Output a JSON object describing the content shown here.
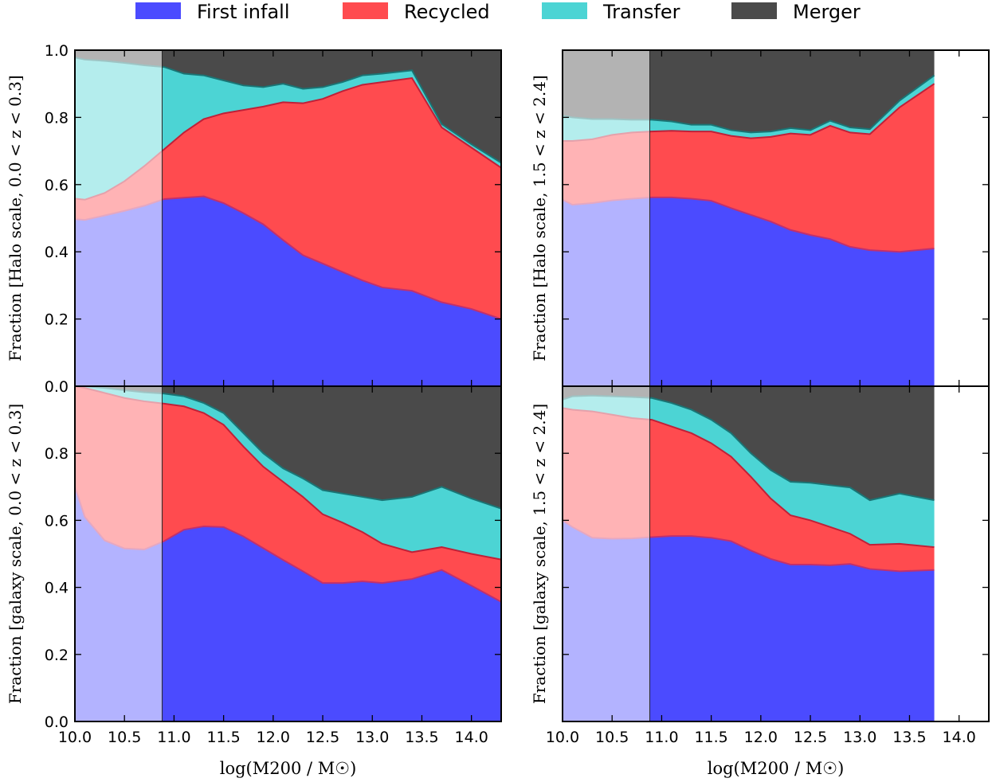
{
  "legend": {
    "placement": "top-center",
    "items": [
      {
        "label": "First infall",
        "color": "#4b4bff"
      },
      {
        "label": "Recycled",
        "color": "#ff4b4f"
      },
      {
        "label": "Transfer",
        "color": "#4cd4d4"
      },
      {
        "label": "Merger",
        "color": "#4a4a4a"
      }
    ]
  },
  "chart_data": [
    {
      "type": "area",
      "stacked": true,
      "title": "",
      "xlabel": "",
      "ylabel": "Fraction [Halo scale, 0.0 < z < 0.3]",
      "xlim": [
        10.0,
        14.3
      ],
      "ylim": [
        0.0,
        1.0
      ],
      "xticks": [
        "10.0",
        "10.5",
        "11.0",
        "11.5",
        "12.0",
        "12.5",
        "13.0",
        "13.5",
        "14.0"
      ],
      "yticks": [
        "0.0",
        "0.2",
        "0.4",
        "0.6",
        "0.8",
        "1.0"
      ],
      "shaded_region": [
        10.0,
        10.88
      ],
      "x": [
        10.0,
        10.1,
        10.3,
        10.5,
        10.7,
        10.9,
        11.1,
        11.3,
        11.5,
        11.7,
        11.9,
        12.1,
        12.3,
        12.5,
        12.7,
        12.9,
        13.1,
        13.4,
        13.7,
        14.0,
        14.3
      ],
      "cumulative": [
        {
          "series": "First infall",
          "values": [
            0.497,
            0.495,
            0.508,
            0.522,
            0.537,
            0.557,
            0.561,
            0.565,
            0.545,
            0.515,
            0.482,
            0.435,
            0.39,
            0.365,
            0.34,
            0.315,
            0.294,
            0.284,
            0.25,
            0.23,
            0.2
          ]
        },
        {
          "series": "Recycled",
          "values": [
            0.558,
            0.555,
            0.575,
            0.61,
            0.655,
            0.705,
            0.755,
            0.795,
            0.812,
            0.822,
            0.832,
            0.845,
            0.842,
            0.855,
            0.878,
            0.897,
            0.905,
            0.917,
            0.77,
            0.71,
            0.65
          ]
        },
        {
          "series": "Transfer",
          "values": [
            0.978,
            0.972,
            0.968,
            0.962,
            0.955,
            0.95,
            0.93,
            0.925,
            0.91,
            0.895,
            0.89,
            0.9,
            0.885,
            0.89,
            0.905,
            0.925,
            0.93,
            0.94,
            0.78,
            0.72,
            0.665
          ]
        },
        {
          "series": "Merger",
          "values": [
            1,
            1,
            1,
            1,
            1,
            1,
            1,
            1,
            1,
            1,
            1,
            1,
            1,
            1,
            1,
            1,
            1,
            1,
            1,
            1,
            1
          ]
        }
      ]
    },
    {
      "type": "area",
      "stacked": true,
      "title": "",
      "xlabel": "",
      "ylabel": "Fraction [Halo scale, 1.5 < z < 2.4]",
      "xlim": [
        10.0,
        14.3
      ],
      "ylim": [
        0.0,
        1.0
      ],
      "xticks": [
        "10.0",
        "10.5",
        "11.0",
        "11.5",
        "12.0",
        "12.5",
        "13.0",
        "13.5",
        "14.0"
      ],
      "yticks": [
        "0.0",
        "0.2",
        "0.4",
        "0.6",
        "0.8",
        "1.0"
      ],
      "shaded_region": [
        10.0,
        10.88
      ],
      "x": [
        10.0,
        10.1,
        10.3,
        10.5,
        10.7,
        10.9,
        11.1,
        11.3,
        11.5,
        11.7,
        11.9,
        12.1,
        12.3,
        12.5,
        12.7,
        12.9,
        13.1,
        13.4,
        13.75
      ],
      "cumulative": [
        {
          "series": "First infall",
          "values": [
            0.555,
            0.54,
            0.545,
            0.553,
            0.558,
            0.562,
            0.562,
            0.558,
            0.552,
            0.53,
            0.51,
            0.49,
            0.465,
            0.45,
            0.438,
            0.415,
            0.405,
            0.4,
            0.41
          ]
        },
        {
          "series": "Recycled",
          "values": [
            0.73,
            0.73,
            0.735,
            0.748,
            0.755,
            0.758,
            0.76,
            0.758,
            0.758,
            0.745,
            0.738,
            0.742,
            0.752,
            0.748,
            0.775,
            0.755,
            0.75,
            0.83,
            0.9
          ]
        },
        {
          "series": "Transfer",
          "values": [
            0.805,
            0.8,
            0.795,
            0.795,
            0.793,
            0.793,
            0.788,
            0.778,
            0.778,
            0.762,
            0.755,
            0.758,
            0.768,
            0.762,
            0.79,
            0.77,
            0.765,
            0.85,
            0.925
          ]
        },
        {
          "series": "Merger",
          "values": [
            1,
            1,
            1,
            1,
            1,
            1,
            1,
            1,
            1,
            1,
            1,
            1,
            1,
            1,
            1,
            1,
            1,
            1,
            1
          ]
        }
      ]
    },
    {
      "type": "area",
      "stacked": true,
      "title": "",
      "xlabel": "log(M200 / M☉)",
      "ylabel": "Fraction [galaxy scale, 0.0 < z < 0.3]",
      "xlim": [
        10.0,
        14.3
      ],
      "ylim": [
        0.0,
        1.0
      ],
      "xticks": [
        "10.0",
        "10.5",
        "11.0",
        "11.5",
        "12.0",
        "12.5",
        "13.0",
        "13.5",
        "14.0"
      ],
      "yticks": [
        "0.0",
        "0.2",
        "0.4",
        "0.6",
        "0.8",
        ""
      ],
      "shaded_region": [
        10.0,
        10.88
      ],
      "x": [
        10.0,
        10.1,
        10.3,
        10.5,
        10.7,
        10.9,
        11.1,
        11.3,
        11.5,
        11.7,
        11.9,
        12.1,
        12.3,
        12.5,
        12.7,
        12.9,
        13.1,
        13.4,
        13.7,
        14.0,
        14.3
      ],
      "cumulative": [
        {
          "series": "First infall",
          "values": [
            0.7,
            0.61,
            0.54,
            0.516,
            0.513,
            0.538,
            0.572,
            0.582,
            0.58,
            0.552,
            0.517,
            0.482,
            0.448,
            0.413,
            0.413,
            0.418,
            0.413,
            0.425,
            0.452,
            0.405,
            0.357
          ]
        },
        {
          "series": "Recycled",
          "values": [
            1.0,
            0.995,
            0.98,
            0.965,
            0.955,
            0.948,
            0.94,
            0.92,
            0.885,
            0.82,
            0.76,
            0.715,
            0.67,
            0.618,
            0.593,
            0.565,
            0.53,
            0.505,
            0.52,
            0.5,
            0.483
          ]
        },
        {
          "series": "Transfer",
          "values": [
            1.0,
            1.0,
            0.995,
            0.988,
            0.982,
            0.978,
            0.97,
            0.95,
            0.92,
            0.86,
            0.8,
            0.755,
            0.725,
            0.69,
            0.68,
            0.67,
            0.66,
            0.67,
            0.7,
            0.665,
            0.635
          ]
        },
        {
          "series": "Merger",
          "values": [
            1,
            1,
            1,
            1,
            1,
            1,
            1,
            1,
            1,
            1,
            1,
            1,
            1,
            1,
            1,
            1,
            1,
            1,
            1,
            1,
            1
          ]
        }
      ]
    },
    {
      "type": "area",
      "stacked": true,
      "title": "",
      "xlabel": "log(M200 / M☉)",
      "ylabel": "Fraction [galaxy scale, 1.5 < z < 2.4]",
      "xlim": [
        10.0,
        14.3
      ],
      "ylim": [
        0.0,
        1.0
      ],
      "xticks": [
        "10.0",
        "10.5",
        "11.0",
        "11.5",
        "12.0",
        "12.5",
        "13.0",
        "13.5",
        "14.0"
      ],
      "yticks": [
        "0.0",
        "0.2",
        "0.4",
        "0.6",
        "0.8",
        ""
      ],
      "shaded_region": [
        10.0,
        10.88
      ],
      "x": [
        10.0,
        10.1,
        10.3,
        10.5,
        10.7,
        10.9,
        11.1,
        11.3,
        11.5,
        11.7,
        11.9,
        12.1,
        12.3,
        12.5,
        12.7,
        12.9,
        13.1,
        13.4,
        13.75
      ],
      "cumulative": [
        {
          "series": "First infall",
          "values": [
            0.6,
            0.58,
            0.548,
            0.545,
            0.546,
            0.55,
            0.553,
            0.553,
            0.548,
            0.538,
            0.51,
            0.485,
            0.468,
            0.468,
            0.466,
            0.47,
            0.455,
            0.448,
            0.452
          ]
        },
        {
          "series": "Recycled",
          "values": [
            0.935,
            0.93,
            0.925,
            0.915,
            0.905,
            0.9,
            0.88,
            0.86,
            0.83,
            0.79,
            0.73,
            0.665,
            0.615,
            0.6,
            0.58,
            0.56,
            0.527,
            0.53,
            0.52
          ]
        },
        {
          "series": "Transfer",
          "values": [
            0.96,
            0.97,
            0.972,
            0.97,
            0.968,
            0.965,
            0.95,
            0.93,
            0.9,
            0.86,
            0.8,
            0.75,
            0.715,
            0.712,
            0.705,
            0.698,
            0.66,
            0.68,
            0.66
          ]
        },
        {
          "series": "Merger",
          "values": [
            1,
            1,
            1,
            1,
            1,
            1,
            1,
            1,
            1,
            1,
            1,
            1,
            1,
            1,
            1,
            1,
            1,
            1,
            1
          ]
        }
      ]
    }
  ]
}
